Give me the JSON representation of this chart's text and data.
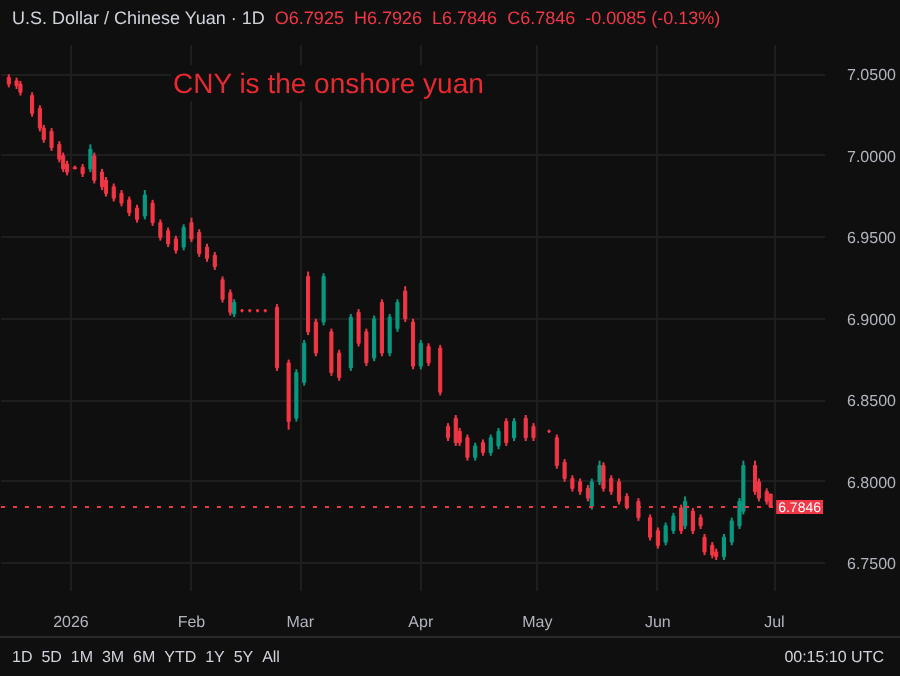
{
  "chart_data": {
    "type": "candlestick",
    "title": "U.S. Dollar / Chinese Yuan · 1D",
    "annotations": [
      "CNY is the onshore yuan",
      "O6.7925",
      "H6.7926",
      "L6.7846",
      "C6.7846",
      "-0.0085 (-0.13%)",
      "1D",
      "5D",
      "1M",
      "3M",
      "6M",
      "YTD",
      "1Y",
      "5Y",
      "All",
      "00:15:10 UTC"
    ],
    "x": [
      "2025-12-16",
      "2025-12-18",
      "2025-12-19",
      "2025-12-22",
      "2025-12-24",
      "2025-12-25",
      "2025-12-27",
      "2025-12-29",
      "2025-12-30",
      "2025-12-31",
      "2026-01-02",
      "2026-01-04",
      "2026-01-06",
      "2026-01-07",
      "2026-01-09",
      "2026-01-10",
      "2026-01-12",
      "2026-01-14",
      "2026-01-16",
      "2026-01-18",
      "2026-01-20",
      "2026-01-22",
      "2026-01-24",
      "2026-01-26",
      "2026-01-28",
      "2026-01-30",
      "2026-02-01",
      "2026-02-03",
      "2026-02-05",
      "2026-02-07",
      "2026-02-09",
      "2026-02-11",
      "2026-02-12",
      "2026-02-14",
      "2026-02-16",
      "2026-02-18",
      "2026-02-20",
      "2026-02-23",
      "2026-02-26",
      "2026-02-28",
      "2026-03-02",
      "2026-03-03",
      "2026-03-05",
      "2026-03-07",
      "2026-03-09",
      "2026-03-11",
      "2026-03-14",
      "2026-03-16",
      "2026-03-18",
      "2026-03-20",
      "2026-03-22",
      "2026-03-24",
      "2026-03-26",
      "2026-03-28",
      "2026-03-30",
      "2026-04-01",
      "2026-04-03",
      "2026-04-06",
      "2026-04-08",
      "2026-04-10",
      "2026-04-11",
      "2026-04-13",
      "2026-04-15",
      "2026-04-17",
      "2026-04-19",
      "2026-04-21",
      "2026-04-23",
      "2026-04-25",
      "2026-04-28",
      "2026-04-30",
      "2026-05-04",
      "2026-05-06",
      "2026-05-08",
      "2026-05-10",
      "2026-05-12",
      "2026-05-14",
      "2026-05-15",
      "2026-05-17",
      "2026-05-18",
      "2026-05-20",
      "2026-05-22",
      "2026-05-24",
      "2026-05-27",
      "2026-05-30",
      "2026-06-01",
      "2026-06-03",
      "2026-06-05",
      "2026-06-07",
      "2026-06-08",
      "2026-06-10",
      "2026-06-12",
      "2026-06-13",
      "2026-06-15",
      "2026-06-16",
      "2026-06-18",
      "2026-06-20",
      "2026-06-22",
      "2026-06-23",
      "2026-06-26",
      "2026-06-27",
      "2026-06-29",
      "2026-06-30"
    ],
    "ohlc": [
      [
        7.048,
        7.05,
        7.042,
        7.044
      ],
      [
        7.046,
        7.048,
        7.041,
        7.043
      ],
      [
        7.044,
        7.046,
        7.037,
        7.039
      ],
      [
        7.037,
        7.039,
        7.024,
        7.026
      ],
      [
        7.029,
        7.031,
        7.015,
        7.017
      ],
      [
        7.017,
        7.019,
        7.008,
        7.01
      ],
      [
        7.015,
        7.017,
        7.003,
        7.005
      ],
      [
        7.007,
        7.009,
        6.996,
        6.998
      ],
      [
        7.0,
        7.002,
        6.99,
        6.992
      ],
      [
        6.995,
        6.997,
        6.988,
        6.99
      ],
      [
        6.993,
        6.994,
        6.992,
        6.992
      ],
      [
        6.993,
        6.995,
        6.987,
        6.989
      ],
      [
        6.992,
        7.007,
        6.99,
        7.004
      ],
      [
        7.0,
        7.002,
        6.983,
        6.985
      ],
      [
        6.99,
        6.992,
        6.979,
        6.981
      ],
      [
        6.985,
        6.987,
        6.975,
        6.977
      ],
      [
        6.981,
        6.983,
        6.972,
        6.974
      ],
      [
        6.977,
        6.979,
        6.969,
        6.971
      ],
      [
        6.973,
        6.975,
        6.963,
        6.965
      ],
      [
        6.968,
        6.97,
        6.959,
        6.961
      ],
      [
        6.963,
        6.979,
        6.961,
        6.976
      ],
      [
        6.971,
        6.973,
        6.957,
        6.959
      ],
      [
        6.959,
        6.961,
        6.948,
        6.95
      ],
      [
        6.954,
        6.956,
        6.944,
        6.946
      ],
      [
        6.949,
        6.951,
        6.94,
        6.942
      ],
      [
        6.944,
        6.958,
        6.942,
        6.956
      ],
      [
        6.959,
        6.962,
        6.947,
        6.949
      ],
      [
        6.953,
        6.955,
        6.938,
        6.94
      ],
      [
        6.944,
        6.946,
        6.935,
        6.937
      ],
      [
        6.939,
        6.941,
        6.93,
        6.932
      ],
      [
        6.924,
        6.926,
        6.91,
        6.912
      ],
      [
        6.916,
        6.918,
        6.902,
        6.904
      ],
      [
        6.903,
        6.912,
        6.901,
        6.91
      ],
      [
        6.905,
        6.906,
        6.904,
        6.905
      ],
      [
        6.905,
        6.906,
        6.904,
        6.905
      ],
      [
        6.905,
        6.906,
        6.904,
        6.905
      ],
      [
        6.905,
        6.906,
        6.904,
        6.905
      ],
      [
        6.907,
        6.909,
        6.868,
        6.87
      ],
      [
        6.873,
        6.875,
        6.832,
        6.837
      ],
      [
        6.839,
        6.869,
        6.837,
        6.867
      ],
      [
        6.861,
        6.887,
        6.859,
        6.885
      ],
      [
        6.926,
        6.929,
        6.89,
        6.892
      ],
      [
        6.898,
        6.9,
        6.877,
        6.879
      ],
      [
        6.898,
        6.928,
        6.896,
        6.926
      ],
      [
        6.892,
        6.894,
        6.865,
        6.867
      ],
      [
        6.879,
        6.881,
        6.862,
        6.864
      ],
      [
        6.87,
        6.903,
        6.868,
        6.901
      ],
      [
        6.904,
        6.906,
        6.883,
        6.885
      ],
      [
        6.892,
        6.894,
        6.871,
        6.873
      ],
      [
        6.876,
        6.902,
        6.874,
        6.9
      ],
      [
        6.91,
        6.912,
        6.877,
        6.879
      ],
      [
        6.879,
        6.903,
        6.877,
        6.901
      ],
      [
        6.894,
        6.912,
        6.892,
        6.91
      ],
      [
        6.917,
        6.92,
        6.898,
        6.9
      ],
      [
        6.898,
        6.9,
        6.869,
        6.871
      ],
      [
        6.871,
        6.887,
        6.869,
        6.885
      ],
      [
        6.883,
        6.885,
        6.871,
        6.873
      ],
      [
        6.882,
        6.884,
        6.853,
        6.855
      ],
      [
        6.834,
        6.836,
        6.825,
        6.827
      ],
      [
        6.839,
        6.841,
        6.822,
        6.824
      ],
      [
        6.831,
        6.833,
        6.822,
        6.824
      ],
      [
        6.827,
        6.829,
        6.813,
        6.815
      ],
      [
        6.815,
        6.824,
        6.813,
        6.822
      ],
      [
        6.824,
        6.826,
        6.816,
        6.818
      ],
      [
        6.818,
        6.829,
        6.816,
        6.827
      ],
      [
        6.822,
        6.833,
        6.82,
        6.831
      ],
      [
        6.837,
        6.839,
        6.822,
        6.824
      ],
      [
        6.827,
        6.839,
        6.825,
        6.837
      ],
      [
        6.839,
        6.841,
        6.825,
        6.827
      ],
      [
        6.834,
        6.836,
        6.825,
        6.827
      ],
      [
        6.831,
        6.832,
        6.83,
        6.831
      ],
      [
        6.827,
        6.829,
        6.808,
        6.81
      ],
      [
        6.812,
        6.814,
        6.8,
        6.802
      ],
      [
        6.802,
        6.804,
        6.794,
        6.796
      ],
      [
        6.8,
        6.802,
        6.792,
        6.794
      ],
      [
        6.796,
        6.798,
        6.788,
        6.79
      ],
      [
        6.785,
        6.802,
        6.783,
        6.8
      ],
      [
        6.8,
        6.813,
        6.798,
        6.81
      ],
      [
        6.81,
        6.812,
        6.794,
        6.796
      ],
      [
        6.802,
        6.804,
        6.792,
        6.794
      ],
      [
        6.8,
        6.802,
        6.786,
        6.788
      ],
      [
        6.791,
        6.793,
        6.783,
        6.785
      ],
      [
        6.788,
        6.79,
        6.776,
        6.778
      ],
      [
        6.778,
        6.78,
        6.764,
        6.766
      ],
      [
        6.77,
        6.772,
        6.759,
        6.761
      ],
      [
        6.763,
        6.775,
        6.761,
        6.773
      ],
      [
        6.77,
        6.781,
        6.768,
        6.779
      ],
      [
        6.784,
        6.786,
        6.768,
        6.77
      ],
      [
        6.773,
        6.791,
        6.771,
        6.788
      ],
      [
        6.782,
        6.784,
        6.768,
        6.77
      ],
      [
        6.778,
        6.78,
        6.771,
        6.773
      ],
      [
        6.766,
        6.768,
        6.755,
        6.757
      ],
      [
        6.761,
        6.763,
        6.753,
        6.755
      ],
      [
        6.757,
        6.759,
        6.752,
        6.754
      ],
      [
        6.754,
        6.768,
        6.752,
        6.766
      ],
      [
        6.763,
        6.778,
        6.761,
        6.776
      ],
      [
        6.773,
        6.79,
        6.771,
        6.788
      ],
      [
        6.782,
        6.813,
        6.78,
        6.81
      ],
      [
        6.81,
        6.813,
        6.792,
        6.794
      ],
      [
        6.8,
        6.802,
        6.788,
        6.79
      ],
      [
        6.794,
        6.796,
        6.786,
        6.788
      ],
      [
        6.7925,
        6.7926,
        6.7846,
        6.7846
      ]
    ],
    "xlim": [
      "2025-12-14",
      "2026-07-14"
    ],
    "xticks": [
      {
        "value": "2026-01-01",
        "label": "2026"
      },
      {
        "value": "2026-02-01",
        "label": "Feb"
      },
      {
        "value": "2026-03-01",
        "label": "Mar"
      },
      {
        "value": "2026-04-01",
        "label": "Apr"
      },
      {
        "value": "2026-05-01",
        "label": "May"
      },
      {
        "value": "2026-06-01",
        "label": "Jun"
      },
      {
        "value": "2026-07-01",
        "label": "Jul"
      }
    ],
    "ylim": [
      6.733,
      7.068
    ],
    "yticks": [
      {
        "value": 6.75,
        "label": "6.7500"
      },
      {
        "value": 6.8,
        "label": "6.8000"
      },
      {
        "value": 6.85,
        "label": "6.8500"
      },
      {
        "value": 6.9,
        "label": "6.9000"
      },
      {
        "value": 6.95,
        "label": "6.9500"
      },
      {
        "value": 7.0,
        "label": "7.0000"
      },
      {
        "value": 7.05,
        "label": "7.0500"
      }
    ],
    "ref_lines": [
      {
        "axis": "y",
        "value": 6.7846,
        "label": "6.7846",
        "color": "#f23645",
        "line_style": "dotted"
      }
    ],
    "grid": true
  }
}
